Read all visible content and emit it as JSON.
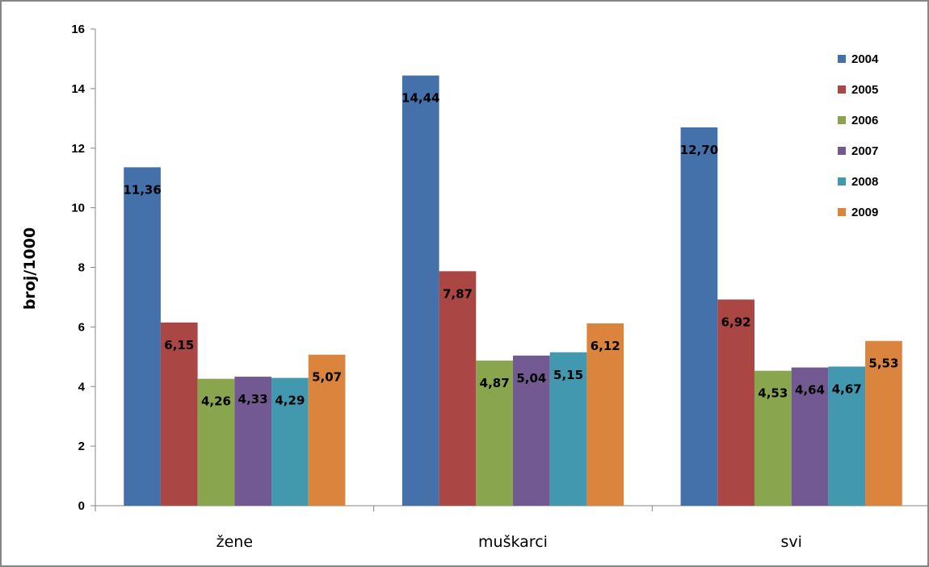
{
  "chart_data": {
    "type": "bar",
    "title": "",
    "xlabel": "",
    "ylabel": "broj/1000",
    "ylim": [
      0,
      16
    ],
    "yticks": [
      0,
      2,
      4,
      6,
      8,
      10,
      12,
      14,
      16
    ],
    "grid": false,
    "legend_position": "top-right",
    "categories": [
      "žene",
      "muškarci",
      "svi"
    ],
    "series": [
      {
        "name": "2004",
        "color": "#4471AA",
        "values": [
          11.36,
          14.44,
          12.7
        ],
        "labels": [
          "11,36",
          "14,44",
          "12,70"
        ]
      },
      {
        "name": "2005",
        "color": "#AA4644",
        "values": [
          6.15,
          7.87,
          6.92
        ],
        "labels": [
          "6,15",
          "7,87",
          "6,92"
        ]
      },
      {
        "name": "2006",
        "color": "#89A54E",
        "values": [
          4.26,
          4.87,
          4.53
        ],
        "labels": [
          "4,26",
          "4,87",
          "4,53"
        ]
      },
      {
        "name": "2007",
        "color": "#725991",
        "values": [
          4.33,
          5.04,
          4.64
        ],
        "labels": [
          "4,33",
          "5,04",
          "4,64"
        ]
      },
      {
        "name": "2008",
        "color": "#4198AF",
        "values": [
          4.29,
          5.15,
          4.67
        ],
        "labels": [
          "4,29",
          "5,15",
          "4,67"
        ]
      },
      {
        "name": "2009",
        "color": "#DB843D",
        "values": [
          5.07,
          6.12,
          5.53
        ],
        "labels": [
          "5,07",
          "6,12",
          "5,53"
        ]
      }
    ]
  }
}
